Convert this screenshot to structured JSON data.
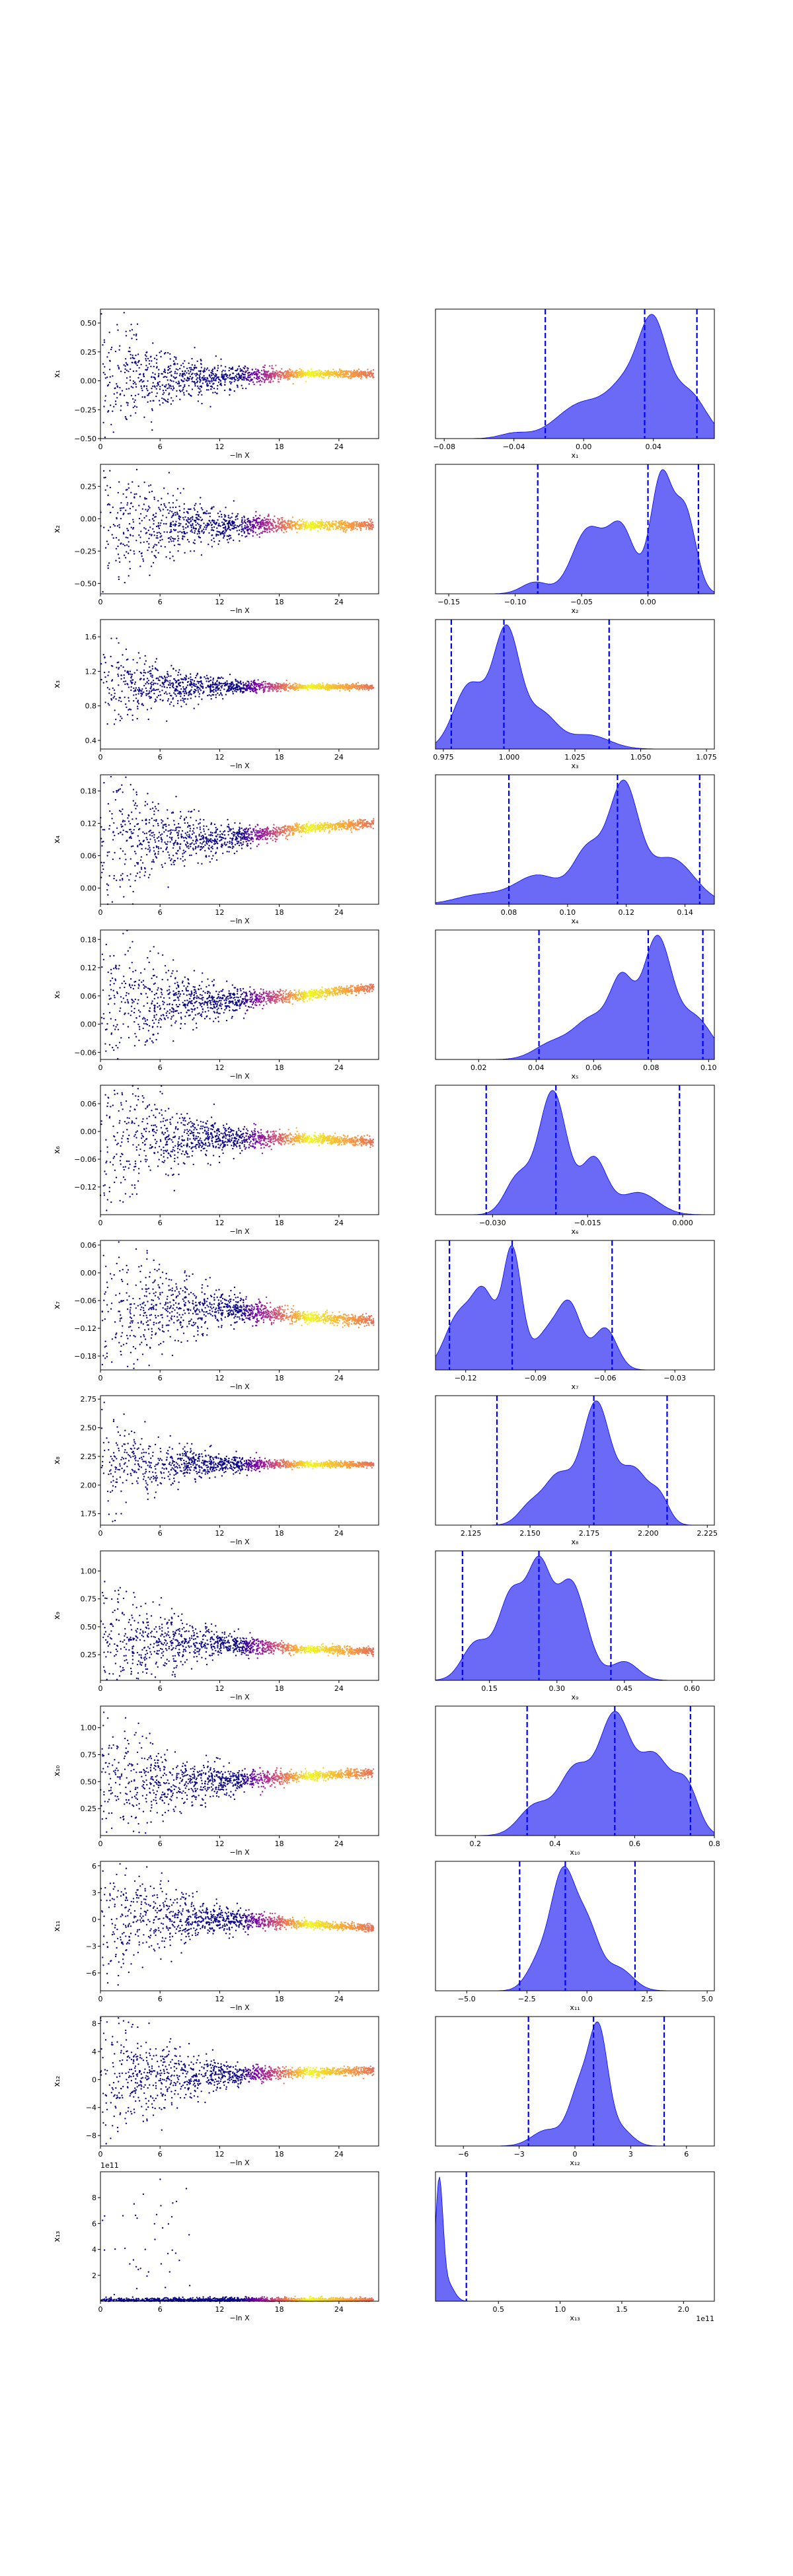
{
  "colors": {
    "scatter_low": "#0d0887",
    "scatter_high": "#f0f921",
    "kde_fill": "#5a5af5",
    "kde_edge": "#0000ff",
    "quantile_line": "#0000ff"
  },
  "chart_data": [
    {
      "type": "scatter",
      "panel": "trace",
      "xlabel": "−ln X",
      "ylabel": "x₁",
      "xlim": [
        0,
        28
      ],
      "ylim": [
        -0.5,
        0.62
      ],
      "xticks": [
        "0",
        "6",
        "12",
        "18",
        "24"
      ],
      "yticks": [
        "−0.50",
        "−0.25",
        "0.00",
        "0.25",
        "0.50"
      ],
      "center": 0.03,
      "spread": 0.32,
      "offset_mid": 0.03,
      "offset_end": 0.03
    },
    {
      "type": "area",
      "panel": "marginal",
      "xlabel": "x₁",
      "xlim": [
        -0.085,
        0.075
      ],
      "xticks": [
        "−0.08",
        "−0.04",
        "0.00",
        "0.04"
      ],
      "quantiles": [
        -0.022,
        0.035,
        0.065
      ],
      "kde": [
        {
          "c": -0.04,
          "s": 0.008,
          "a": 0.05
        },
        {
          "c": 0.0,
          "s": 0.015,
          "a": 0.35
        },
        {
          "c": 0.025,
          "s": 0.01,
          "a": 0.45
        },
        {
          "c": 0.04,
          "s": 0.008,
          "a": 1.0
        },
        {
          "c": 0.06,
          "s": 0.01,
          "a": 0.45
        }
      ]
    },
    {
      "type": "scatter",
      "panel": "trace",
      "xlabel": "−ln X",
      "ylabel": "x₂",
      "xlim": [
        0,
        28
      ],
      "ylim": [
        -0.58,
        0.42
      ],
      "xticks": [
        "0",
        "6",
        "12",
        "18",
        "24"
      ],
      "yticks": [
        "−0.50",
        "−0.25",
        "0.00",
        "0.25"
      ],
      "center": -0.05,
      "spread": 0.34,
      "offset_mid": 0.0,
      "offset_end": 0.0
    },
    {
      "type": "area",
      "panel": "marginal",
      "xlabel": "x₂",
      "xlim": [
        -0.16,
        0.05
      ],
      "xticks": [
        "−0.15",
        "−0.10",
        "−0.05",
        "0.00"
      ],
      "quantiles": [
        -0.083,
        0.0,
        0.038
      ],
      "kde": [
        {
          "c": -0.085,
          "s": 0.01,
          "a": 0.1
        },
        {
          "c": -0.045,
          "s": 0.012,
          "a": 0.55
        },
        {
          "c": -0.02,
          "s": 0.01,
          "a": 0.55
        },
        {
          "c": 0.01,
          "s": 0.008,
          "a": 1.0
        },
        {
          "c": 0.028,
          "s": 0.008,
          "a": 0.7
        }
      ]
    },
    {
      "type": "scatter",
      "panel": "trace",
      "xlabel": "−ln X",
      "ylabel": "x₃",
      "xlim": [
        0,
        28
      ],
      "ylim": [
        0.3,
        1.8
      ],
      "xticks": [
        "0",
        "6",
        "12",
        "18",
        "24"
      ],
      "yticks": [
        "0.4",
        "0.8",
        "1.2",
        "1.6"
      ],
      "center": 1.02,
      "spread": 0.3,
      "offset_mid": 0.0,
      "offset_end": 0.0
    },
    {
      "type": "area",
      "panel": "marginal",
      "xlabel": "x₃",
      "xlim": [
        0.972,
        1.078
      ],
      "xticks": [
        "0.975",
        "1.000",
        "1.025",
        "1.050",
        "1.075"
      ],
      "quantiles": [
        0.978,
        0.998,
        1.038
      ],
      "kde": [
        {
          "c": 0.985,
          "s": 0.006,
          "a": 0.55
        },
        {
          "c": 0.999,
          "s": 0.005,
          "a": 1.0
        },
        {
          "c": 1.012,
          "s": 0.006,
          "a": 0.3
        },
        {
          "c": 1.03,
          "s": 0.008,
          "a": 0.12
        }
      ]
    },
    {
      "type": "scatter",
      "panel": "trace",
      "xlabel": "−ln X",
      "ylabel": "x₄",
      "xlim": [
        0,
        28
      ],
      "ylim": [
        -0.03,
        0.21
      ],
      "xticks": [
        "0",
        "6",
        "12",
        "18",
        "24"
      ],
      "yticks": [
        "0.00",
        "0.06",
        "0.12",
        "0.18"
      ],
      "center": 0.09,
      "spread": 0.08,
      "offset_mid": 0.02,
      "offset_end": 0.03
    },
    {
      "type": "area",
      "panel": "marginal",
      "xlabel": "x₄",
      "xlim": [
        0.055,
        0.15
      ],
      "xticks": [
        "0.08",
        "0.10",
        "0.12",
        "0.14"
      ],
      "quantiles": [
        0.08,
        0.117,
        0.145
      ],
      "kde": [
        {
          "c": 0.07,
          "s": 0.008,
          "a": 0.08
        },
        {
          "c": 0.09,
          "s": 0.008,
          "a": 0.25
        },
        {
          "c": 0.107,
          "s": 0.005,
          "a": 0.45
        },
        {
          "c": 0.119,
          "s": 0.005,
          "a": 1.0
        },
        {
          "c": 0.135,
          "s": 0.008,
          "a": 0.4
        }
      ]
    },
    {
      "type": "scatter",
      "panel": "trace",
      "xlabel": "−ln X",
      "ylabel": "x₅",
      "xlim": [
        0,
        28
      ],
      "ylim": [
        -0.075,
        0.2
      ],
      "xticks": [
        "0",
        "6",
        "12",
        "18",
        "24"
      ],
      "yticks": [
        "−0.06",
        "0.00",
        "0.06",
        "0.12",
        "0.18"
      ],
      "center": 0.05,
      "spread": 0.09,
      "offset_mid": 0.01,
      "offset_end": 0.03
    },
    {
      "type": "area",
      "panel": "marginal",
      "xlabel": "x₅",
      "xlim": [
        0.005,
        0.102
      ],
      "xticks": [
        "0.02",
        "0.04",
        "0.06",
        "0.08",
        "0.10"
      ],
      "quantiles": [
        0.041,
        0.079,
        0.098
      ],
      "kde": [
        {
          "c": 0.045,
          "s": 0.006,
          "a": 0.12
        },
        {
          "c": 0.06,
          "s": 0.007,
          "a": 0.35
        },
        {
          "c": 0.07,
          "s": 0.004,
          "a": 0.55
        },
        {
          "c": 0.082,
          "s": 0.005,
          "a": 1.0
        },
        {
          "c": 0.095,
          "s": 0.006,
          "a": 0.35
        }
      ]
    },
    {
      "type": "scatter",
      "panel": "trace",
      "xlabel": "−ln X",
      "ylabel": "x₆",
      "xlim": [
        0,
        28
      ],
      "ylim": [
        -0.18,
        0.1
      ],
      "xticks": [
        "0",
        "6",
        "12",
        "18",
        "24"
      ],
      "yticks": [
        "−0.12",
        "−0.06",
        "0.00",
        "0.06"
      ],
      "center": -0.015,
      "spread": 0.1,
      "offset_mid": 0.0,
      "offset_end": -0.008
    },
    {
      "type": "area",
      "panel": "marginal",
      "xlabel": "x₆",
      "xlim": [
        -0.039,
        0.005
      ],
      "xticks": [
        "−0.030",
        "−0.015",
        "0.000"
      ],
      "quantiles": [
        -0.031,
        -0.02,
        -0.0005
      ],
      "kde": [
        {
          "c": -0.026,
          "s": 0.002,
          "a": 0.3
        },
        {
          "c": -0.0205,
          "s": 0.0022,
          "a": 1.0
        },
        {
          "c": -0.014,
          "s": 0.002,
          "a": 0.45
        },
        {
          "c": -0.007,
          "s": 0.003,
          "a": 0.18
        }
      ]
    },
    {
      "type": "scatter",
      "panel": "trace",
      "xlabel": "−ln X",
      "ylabel": "x₇",
      "xlim": [
        0,
        28
      ],
      "ylim": [
        -0.21,
        0.07
      ],
      "xticks": [
        "0",
        "6",
        "12",
        "18",
        "24"
      ],
      "yticks": [
        "−0.18",
        "−0.12",
        "−0.06",
        "0.00",
        "0.06"
      ],
      "center": -0.075,
      "spread": 0.11,
      "offset_mid": -0.02,
      "offset_end": -0.03
    },
    {
      "type": "area",
      "panel": "marginal",
      "xlabel": "x₇",
      "xlim": [
        -0.133,
        -0.013
      ],
      "xticks": [
        "−0.12",
        "−0.09",
        "−0.06",
        "−0.03"
      ],
      "quantiles": [
        -0.127,
        -0.1,
        -0.057
      ],
      "kde": [
        {
          "c": -0.123,
          "s": 0.006,
          "a": 0.45
        },
        {
          "c": -0.112,
          "s": 0.005,
          "a": 0.6
        },
        {
          "c": -0.1,
          "s": 0.004,
          "a": 1.0
        },
        {
          "c": -0.085,
          "s": 0.006,
          "a": 0.3
        },
        {
          "c": -0.075,
          "s": 0.005,
          "a": 0.5
        },
        {
          "c": -0.06,
          "s": 0.005,
          "a": 0.35
        }
      ]
    },
    {
      "type": "scatter",
      "panel": "trace",
      "xlabel": "−ln X",
      "ylabel": "x₈",
      "xlim": [
        0,
        28
      ],
      "ylim": [
        1.65,
        2.78
      ],
      "xticks": [
        "0",
        "6",
        "12",
        "18",
        "24"
      ],
      "yticks": [
        "1.75",
        "2.00",
        "2.25",
        "2.50",
        "2.75"
      ],
      "center": 2.18,
      "spread": 0.25,
      "offset_mid": 0.0,
      "offset_end": 0.0
    },
    {
      "type": "area",
      "panel": "marginal",
      "xlabel": "x₈",
      "xlim": [
        2.11,
        2.228
      ],
      "xticks": [
        "2.125",
        "2.150",
        "2.175",
        "2.200",
        "2.225"
      ],
      "quantiles": [
        2.136,
        2.177,
        2.208
      ],
      "kde": [
        {
          "c": 2.15,
          "s": 0.005,
          "a": 0.15
        },
        {
          "c": 2.162,
          "s": 0.006,
          "a": 0.4
        },
        {
          "c": 2.178,
          "s": 0.006,
          "a": 1.0
        },
        {
          "c": 2.194,
          "s": 0.006,
          "a": 0.45
        },
        {
          "c": 2.205,
          "s": 0.004,
          "a": 0.2
        }
      ]
    },
    {
      "type": "scatter",
      "panel": "trace",
      "xlabel": "−ln X",
      "ylabel": "x₉",
      "xlim": [
        0,
        28
      ],
      "ylim": [
        0.02,
        1.18
      ],
      "xticks": [
        "0",
        "6",
        "12",
        "18",
        "24"
      ],
      "yticks": [
        "0.25",
        "0.50",
        "0.75",
        "1.00"
      ],
      "center": 0.35,
      "spread": 0.35,
      "offset_mid": -0.05,
      "offset_end": -0.07
    },
    {
      "type": "area",
      "panel": "marginal",
      "xlabel": "x₉",
      "xlim": [
        0.03,
        0.65
      ],
      "xticks": [
        "0.15",
        "0.30",
        "0.45",
        "0.60"
      ],
      "quantiles": [
        0.09,
        0.26,
        0.42
      ],
      "kde": [
        {
          "c": 0.12,
          "s": 0.03,
          "a": 0.3
        },
        {
          "c": 0.2,
          "s": 0.03,
          "a": 0.7
        },
        {
          "c": 0.26,
          "s": 0.025,
          "a": 0.8
        },
        {
          "c": 0.33,
          "s": 0.035,
          "a": 0.8
        },
        {
          "c": 0.45,
          "s": 0.03,
          "a": 0.15
        }
      ]
    },
    {
      "type": "scatter",
      "panel": "trace",
      "xlabel": "−ln X",
      "ylabel": "x₁₀",
      "xlim": [
        0,
        28
      ],
      "ylim": [
        0.0,
        1.2
      ],
      "xticks": [
        "0",
        "6",
        "12",
        "18",
        "24"
      ],
      "yticks": [
        "0.25",
        "0.50",
        "0.75",
        "1.00"
      ],
      "center": 0.5,
      "spread": 0.4,
      "offset_mid": 0.05,
      "offset_end": 0.08
    },
    {
      "type": "area",
      "panel": "marginal",
      "xlabel": "x₁₀",
      "xlim": [
        0.1,
        0.8
      ],
      "xticks": [
        "0.2",
        "0.4",
        "0.6",
        "0.8"
      ],
      "quantiles": [
        0.33,
        0.55,
        0.74
      ],
      "kde": [
        {
          "c": 0.35,
          "s": 0.04,
          "a": 0.25
        },
        {
          "c": 0.45,
          "s": 0.04,
          "a": 0.55
        },
        {
          "c": 0.55,
          "s": 0.04,
          "a": 1.0
        },
        {
          "c": 0.65,
          "s": 0.04,
          "a": 0.65
        },
        {
          "c": 0.73,
          "s": 0.03,
          "a": 0.4
        }
      ]
    },
    {
      "type": "scatter",
      "panel": "trace",
      "xlabel": "−ln X",
      "ylabel": "x₁₁",
      "xlim": [
        0,
        28
      ],
      "ylim": [
        -8.0,
        6.5
      ],
      "xticks": [
        "0",
        "6",
        "12",
        "18",
        "24"
      ],
      "yticks": [
        "−6",
        "−3",
        "0",
        "3",
        "6"
      ],
      "center": 0.0,
      "spread": 4.5,
      "offset_mid": -0.5,
      "offset_end": -1.0
    },
    {
      "type": "area",
      "panel": "marginal",
      "xlabel": "x₁₁",
      "xlim": [
        -6.3,
        5.3
      ],
      "xticks": [
        "−5.0",
        "−2.5",
        "0.0",
        "2.5",
        "5.0"
      ],
      "quantiles": [
        -2.8,
        -0.9,
        2.0
      ],
      "kde": [
        {
          "c": -2.0,
          "s": 0.5,
          "a": 0.25
        },
        {
          "c": -1.0,
          "s": 0.5,
          "a": 1.0
        },
        {
          "c": 0.0,
          "s": 0.5,
          "a": 0.55
        },
        {
          "c": 1.3,
          "s": 0.6,
          "a": 0.2
        }
      ]
    },
    {
      "type": "scatter",
      "panel": "trace",
      "xlabel": "−ln X",
      "ylabel": "x₁₂",
      "xlim": [
        0,
        28
      ],
      "ylim": [
        -9.5,
        9.0
      ],
      "xticks": [
        "0",
        "6",
        "12",
        "18",
        "24"
      ],
      "yticks": [
        "−8",
        "−4",
        "0",
        "4",
        "8"
      ],
      "center": 0.5,
      "spread": 6.0,
      "offset_mid": 0.5,
      "offset_end": 0.8
    },
    {
      "type": "area",
      "panel": "marginal",
      "xlabel": "x₁₂",
      "xlim": [
        -7.5,
        7.5
      ],
      "xticks": [
        "−6",
        "−3",
        "0",
        "3",
        "6"
      ],
      "quantiles": [
        -2.5,
        1.0,
        4.8
      ],
      "kde": [
        {
          "c": -1.5,
          "s": 0.8,
          "a": 0.15
        },
        {
          "c": 0.3,
          "s": 0.6,
          "a": 0.55
        },
        {
          "c": 1.3,
          "s": 0.5,
          "a": 1.0
        },
        {
          "c": 2.5,
          "s": 0.6,
          "a": 0.15
        }
      ]
    },
    {
      "type": "scatter",
      "panel": "trace",
      "xlabel": "−ln X",
      "ylabel": "x₁₃",
      "xlim": [
        0,
        28
      ],
      "ylim": [
        0,
        1000000000000.0
      ],
      "xticks": [
        "0",
        "6",
        "12",
        "18",
        "24"
      ],
      "yticks": [
        "2",
        "4",
        "6",
        "8"
      ],
      "offset_label": "1e11",
      "heavy_tail": true,
      "center": 0,
      "spread": 0,
      "offset_mid": 0,
      "offset_end": 0
    },
    {
      "type": "area",
      "panel": "marginal",
      "xlabel": "x₁₃",
      "xlim": [
        -1000000000.0,
        225000000000.0
      ],
      "xticks": [
        "0.5",
        "1.0",
        "1.5",
        "2.0"
      ],
      "offset_label": "1e11",
      "quantiles": [
        24000000000.0
      ],
      "kde": [
        {
          "c": 2000000000.0,
          "s": 3000000000.0,
          "a": 1.0
        },
        {
          "c": 9000000000.0,
          "s": 5000000000.0,
          "a": 0.15
        }
      ]
    }
  ]
}
